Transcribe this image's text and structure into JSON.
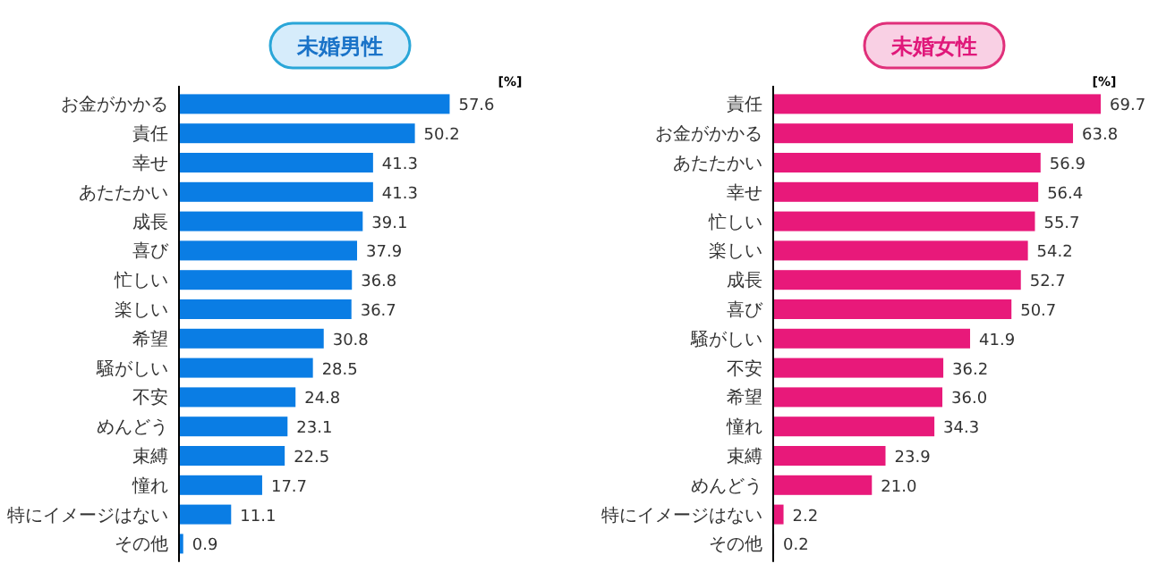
{
  "chart_data": [
    {
      "type": "bar",
      "orientation": "horizontal",
      "title": "未婚男性",
      "annotations": [
        "[%]"
      ],
      "categories": [
        "お金がかかる",
        "責任",
        "幸せ",
        "あたたかい",
        "成長",
        "喜び",
        "忙しい",
        "楽しい",
        "希望",
        "騒がしい",
        "不安",
        "めんどう",
        "束縛",
        "憧れ",
        "特にイメージはない",
        "その他"
      ],
      "values": [
        57.6,
        50.2,
        41.3,
        41.3,
        39.1,
        37.9,
        36.8,
        36.7,
        30.8,
        28.5,
        24.8,
        23.1,
        22.5,
        17.7,
        11.1,
        0.9
      ],
      "value_labels": [
        "57.6",
        "50.2",
        "41.3",
        "41.3",
        "39.1",
        "37.9",
        "36.8",
        "36.7",
        "30.8",
        "28.5",
        "24.8",
        "23.1",
        "22.5",
        "17.7",
        "11.1",
        "0.9"
      ],
      "color": "#0a7de4"
    },
    {
      "type": "bar",
      "orientation": "horizontal",
      "title": "未婚女性",
      "annotations": [
        "[%]"
      ],
      "categories": [
        "責任",
        "お金がかかる",
        "あたたかい",
        "幸せ",
        "忙しい",
        "楽しい",
        "成長",
        "喜び",
        "騒がしい",
        "不安",
        "希望",
        "憧れ",
        "束縛",
        "めんどう",
        "特にイメージはない",
        "その他"
      ],
      "values": [
        69.7,
        63.8,
        56.9,
        56.4,
        55.7,
        54.2,
        52.7,
        50.7,
        41.9,
        36.2,
        36.0,
        34.3,
        23.9,
        21.0,
        2.2,
        0.2
      ],
      "value_labels": [
        "69.7",
        "63.8",
        "56.9",
        "56.4",
        "55.7",
        "54.2",
        "52.7",
        "50.7",
        "41.9",
        "36.2",
        "36.0",
        "34.3",
        "23.9",
        "21.0",
        "2.2",
        "0.2"
      ],
      "color": "#e8197a"
    }
  ]
}
